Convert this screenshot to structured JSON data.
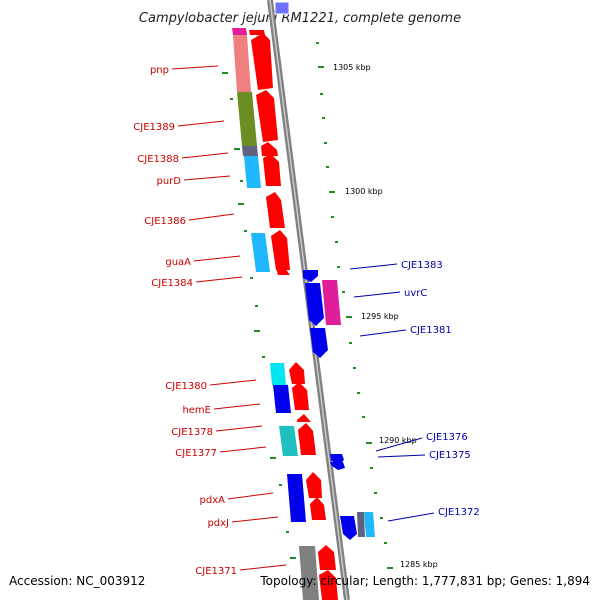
{
  "title": "Campylobacter jejuni RM1221, complete genome",
  "footer": {
    "accession": "Accession: NC_003912",
    "topology": "Topology: circular; Length: 1,777,831 bp; Genes: 1,894"
  },
  "ticks": [
    "1305 kbp",
    "1300 kbp",
    "1295 kbp",
    "1290 kbp",
    "1285 kbp"
  ],
  "labels_left": [
    "pnp",
    "CJE1389",
    "CJE1388",
    "purD",
    "CJE1386",
    "guaA",
    "CJE1384",
    "CJE1380",
    "hemE",
    "CJE1378",
    "CJE1377",
    "pdxA",
    "pdxJ",
    "CJE1371"
  ],
  "labels_right": [
    "CJE1383",
    "uvrC",
    "CJE1381",
    "CJE1376",
    "CJE1375",
    "CJE1372"
  ],
  "colors": {
    "forward_strand": "#ff0000",
    "reverse_strand": "#0000ee",
    "left_label": "#cc0000",
    "right_label": "#0000aa",
    "backbone": "#808080",
    "tick_dot": "#228b22"
  }
}
